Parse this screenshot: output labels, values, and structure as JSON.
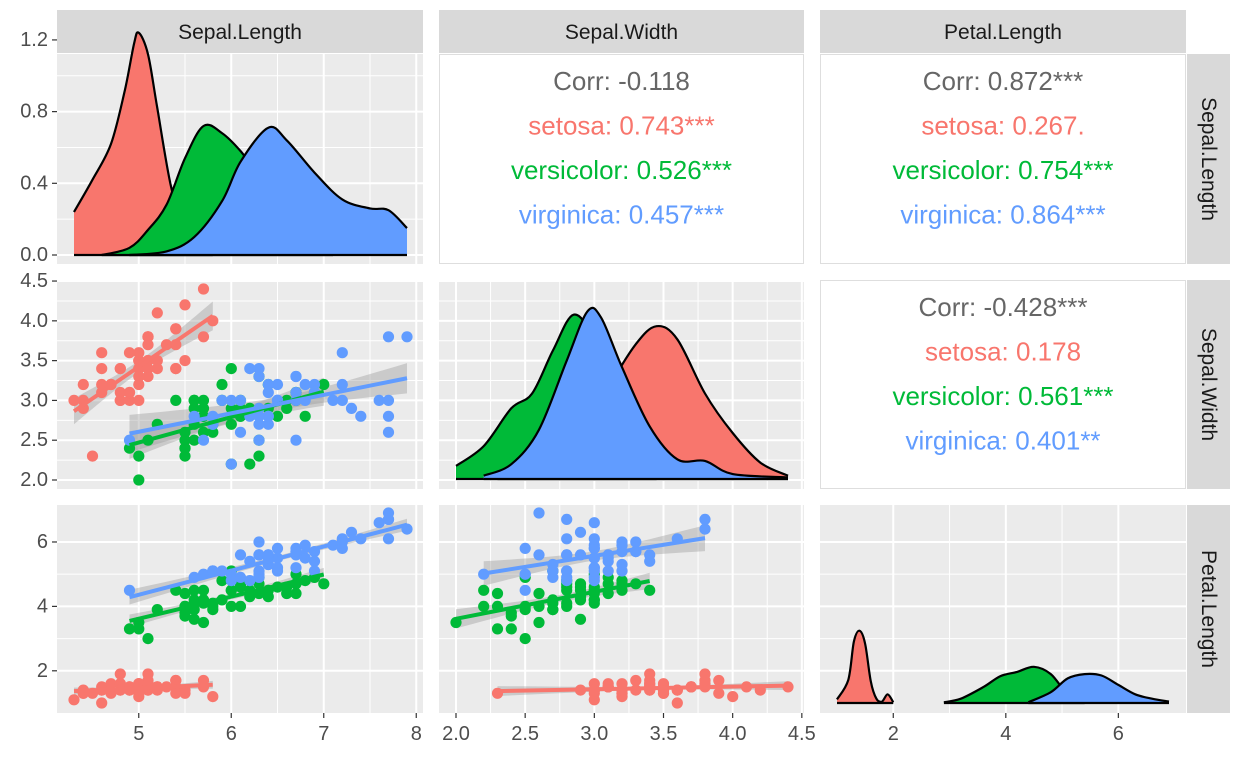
{
  "colors": {
    "setosa": "#F8766D",
    "versicolor": "#00BA38",
    "virginica": "#619CFF",
    "corr_overall": "#666666",
    "panel_bg": "#EBEBEB",
    "strip_bg": "#D9D9D9"
  },
  "chart_data": {
    "type": "scatter",
    "title": "",
    "variables": [
      "Sepal.Length",
      "Sepal.Width",
      "Petal.Length"
    ],
    "groups": [
      "setosa",
      "versicolor",
      "virginica"
    ],
    "axes": {
      "Sepal.Length": {
        "range": [
          4.3,
          7.9
        ],
        "ticks": [
          "5",
          "6",
          "7",
          "8"
        ],
        "tick_values": [
          5,
          6,
          7,
          8
        ]
      },
      "Sepal.Width": {
        "range": [
          2.0,
          4.4
        ],
        "ticks": [
          "2.0",
          "2.5",
          "3.0",
          "3.5",
          "4.0",
          "4.5"
        ],
        "tick_values": [
          2.0,
          2.5,
          3.0,
          3.5,
          4.0,
          4.5
        ]
      },
      "Petal.Length": {
        "range": [
          1.0,
          6.9
        ],
        "ticks_x": [
          "2",
          "4",
          "6"
        ],
        "ticks_y": [
          "2",
          "4",
          "6"
        ],
        "tick_values": [
          2,
          4,
          6
        ]
      }
    },
    "density_axis": {
      "range": [
        0,
        1.3
      ],
      "ticks": [
        "0.0",
        "0.4",
        "0.8",
        "1.2"
      ],
      "tick_values": [
        0.0,
        0.4,
        0.8,
        1.2
      ]
    },
    "densities": {
      "Sepal.Length": {
        "setosa": [
          [
            4.3,
            0.24
          ],
          [
            4.5,
            0.42
          ],
          [
            4.7,
            0.62
          ],
          [
            4.85,
            0.92
          ],
          [
            4.95,
            1.18
          ],
          [
            5.0,
            1.24
          ],
          [
            5.1,
            1.12
          ],
          [
            5.2,
            0.82
          ],
          [
            5.35,
            0.38
          ],
          [
            5.5,
            0.14
          ],
          [
            5.7,
            0.05
          ],
          [
            5.8,
            0.01
          ]
        ],
        "versicolor": [
          [
            4.6,
            0.0
          ],
          [
            4.9,
            0.04
          ],
          [
            5.1,
            0.14
          ],
          [
            5.3,
            0.28
          ],
          [
            5.5,
            0.54
          ],
          [
            5.7,
            0.72
          ],
          [
            5.9,
            0.68
          ],
          [
            6.1,
            0.58
          ],
          [
            6.3,
            0.44
          ],
          [
            6.5,
            0.3
          ],
          [
            6.7,
            0.18
          ],
          [
            6.9,
            0.07
          ],
          [
            7.1,
            0.01
          ]
        ],
        "virginica": [
          [
            4.9,
            0.0
          ],
          [
            5.3,
            0.02
          ],
          [
            5.6,
            0.1
          ],
          [
            5.9,
            0.3
          ],
          [
            6.1,
            0.52
          ],
          [
            6.4,
            0.71
          ],
          [
            6.6,
            0.64
          ],
          [
            6.9,
            0.46
          ],
          [
            7.2,
            0.31
          ],
          [
            7.5,
            0.26
          ],
          [
            7.7,
            0.25
          ],
          [
            7.9,
            0.15
          ]
        ]
      },
      "Sepal.Width": {
        "setosa": [
          [
            2.3,
            0.02
          ],
          [
            2.6,
            0.05
          ],
          [
            2.9,
            0.22
          ],
          [
            3.1,
            0.55
          ],
          [
            3.3,
            0.82
          ],
          [
            3.45,
            0.93
          ],
          [
            3.6,
            0.85
          ],
          [
            3.8,
            0.52
          ],
          [
            4.0,
            0.28
          ],
          [
            4.2,
            0.1
          ],
          [
            4.4,
            0.02
          ]
        ],
        "versicolor": [
          [
            2.0,
            0.08
          ],
          [
            2.2,
            0.2
          ],
          [
            2.4,
            0.43
          ],
          [
            2.55,
            0.52
          ],
          [
            2.7,
            0.78
          ],
          [
            2.85,
            1.0
          ],
          [
            3.0,
            0.85
          ],
          [
            3.15,
            0.55
          ],
          [
            3.3,
            0.25
          ],
          [
            3.45,
            0.05
          ]
        ],
        "virginica": [
          [
            2.2,
            0.02
          ],
          [
            2.4,
            0.09
          ],
          [
            2.6,
            0.3
          ],
          [
            2.8,
            0.72
          ],
          [
            2.95,
            1.02
          ],
          [
            3.05,
            0.98
          ],
          [
            3.2,
            0.68
          ],
          [
            3.4,
            0.32
          ],
          [
            3.6,
            0.12
          ],
          [
            3.8,
            0.11
          ],
          [
            4.0,
            0.03
          ],
          [
            4.4,
            0.01
          ]
        ]
      },
      "Petal.Length": {
        "setosa": [
          [
            1.0,
            0.05
          ],
          [
            1.2,
            0.32
          ],
          [
            1.3,
            0.85
          ],
          [
            1.4,
            1.0
          ],
          [
            1.5,
            0.82
          ],
          [
            1.6,
            0.3
          ],
          [
            1.7,
            0.06
          ],
          [
            1.8,
            0.02
          ],
          [
            1.9,
            0.12
          ],
          [
            2.0,
            0.01
          ]
        ],
        "versicolor": [
          [
            2.9,
            0.01
          ],
          [
            3.2,
            0.06
          ],
          [
            3.6,
            0.22
          ],
          [
            3.9,
            0.37
          ],
          [
            4.2,
            0.43
          ],
          [
            4.5,
            0.5
          ],
          [
            4.8,
            0.4
          ],
          [
            5.1,
            0.12
          ],
          [
            5.4,
            0.0
          ]
        ],
        "virginica": [
          [
            4.4,
            0.01
          ],
          [
            4.8,
            0.15
          ],
          [
            5.1,
            0.34
          ],
          [
            5.4,
            0.4
          ],
          [
            5.7,
            0.38
          ],
          [
            6.0,
            0.25
          ],
          [
            6.3,
            0.12
          ],
          [
            6.6,
            0.06
          ],
          [
            6.9,
            0.02
          ]
        ]
      }
    },
    "density_scale": {
      "Sepal.Width": 1.15,
      "Petal.Length": 2.6
    },
    "points": {
      "setosa": {
        "Sepal.Length": [
          5.1,
          4.9,
          4.7,
          4.6,
          5.0,
          5.4,
          4.6,
          5.0,
          4.4,
          4.9,
          5.4,
          4.8,
          4.8,
          4.3,
          5.8,
          5.7,
          5.4,
          5.1,
          5.7,
          5.1,
          5.4,
          5.1,
          4.6,
          5.1,
          4.8,
          5.0,
          5.0,
          5.2,
          5.2,
          4.7,
          4.8,
          5.4,
          5.2,
          5.5,
          4.9,
          5.0,
          5.5,
          4.9,
          4.4,
          5.1,
          5.0,
          4.5,
          4.4,
          5.0,
          5.1,
          4.8,
          5.1,
          4.6,
          5.3,
          5.0
        ],
        "Sepal.Width": [
          3.5,
          3.0,
          3.2,
          3.1,
          3.6,
          3.9,
          3.4,
          3.4,
          2.9,
          3.1,
          3.7,
          3.4,
          3.0,
          3.0,
          4.0,
          4.4,
          3.9,
          3.5,
          3.8,
          3.8,
          3.4,
          3.7,
          3.6,
          3.3,
          3.4,
          3.0,
          3.4,
          3.5,
          3.4,
          3.2,
          3.1,
          3.4,
          4.1,
          4.2,
          3.1,
          3.2,
          3.5,
          3.6,
          3.0,
          3.4,
          3.5,
          2.3,
          3.2,
          3.5,
          3.8,
          3.0,
          3.8,
          3.2,
          3.7,
          3.3
        ],
        "Petal.Length": [
          1.4,
          1.4,
          1.3,
          1.5,
          1.4,
          1.7,
          1.4,
          1.5,
          1.4,
          1.5,
          1.5,
          1.6,
          1.4,
          1.1,
          1.2,
          1.5,
          1.3,
          1.4,
          1.7,
          1.5,
          1.7,
          1.5,
          1.0,
          1.7,
          1.9,
          1.6,
          1.6,
          1.5,
          1.4,
          1.6,
          1.6,
          1.5,
          1.5,
          1.4,
          1.5,
          1.2,
          1.3,
          1.4,
          1.3,
          1.5,
          1.3,
          1.3,
          1.3,
          1.6,
          1.9,
          1.4,
          1.6,
          1.4,
          1.5,
          1.4
        ]
      },
      "versicolor": {
        "Sepal.Length": [
          7.0,
          6.4,
          6.9,
          5.5,
          6.5,
          5.7,
          6.3,
          4.9,
          6.6,
          5.2,
          5.0,
          5.9,
          6.0,
          6.1,
          5.6,
          6.7,
          5.6,
          5.8,
          6.2,
          5.6,
          5.9,
          6.1,
          6.3,
          6.1,
          6.4,
          6.6,
          6.8,
          6.7,
          6.0,
          5.7,
          5.5,
          5.5,
          5.8,
          6.0,
          5.4,
          6.0,
          6.7,
          6.3,
          5.6,
          5.5,
          5.5,
          6.1,
          5.8,
          5.0,
          5.6,
          5.7,
          5.7,
          6.2,
          5.1,
          5.7
        ],
        "Sepal.Width": [
          3.2,
          3.2,
          3.1,
          2.3,
          2.8,
          2.8,
          3.3,
          2.4,
          2.9,
          2.7,
          2.0,
          3.0,
          2.2,
          2.9,
          2.9,
          3.1,
          3.0,
          2.7,
          2.2,
          2.5,
          3.2,
          2.8,
          2.5,
          2.8,
          2.9,
          3.0,
          2.8,
          3.0,
          2.9,
          2.6,
          2.4,
          2.4,
          2.7,
          2.7,
          3.0,
          3.4,
          3.1,
          2.3,
          3.0,
          2.5,
          2.6,
          3.0,
          2.6,
          2.3,
          2.7,
          3.0,
          2.9,
          2.9,
          2.5,
          2.8
        ],
        "Petal.Length": [
          4.7,
          4.5,
          4.9,
          4.0,
          4.6,
          4.5,
          4.7,
          3.3,
          4.6,
          3.9,
          3.5,
          4.2,
          4.0,
          4.7,
          3.6,
          4.4,
          4.5,
          4.1,
          4.5,
          3.9,
          4.8,
          4.0,
          4.9,
          4.7,
          4.3,
          4.4,
          4.8,
          5.0,
          4.5,
          3.5,
          3.8,
          3.7,
          3.9,
          5.1,
          4.5,
          4.5,
          4.7,
          4.4,
          4.1,
          4.0,
          4.4,
          4.6,
          4.0,
          3.3,
          4.2,
          4.2,
          4.2,
          4.3,
          3.0,
          4.1
        ]
      },
      "virginica": {
        "Sepal.Length": [
          6.3,
          5.8,
          7.1,
          6.3,
          6.5,
          7.6,
          4.9,
          7.3,
          6.7,
          7.2,
          6.5,
          6.4,
          6.8,
          5.7,
          5.8,
          6.4,
          6.5,
          7.7,
          7.7,
          6.0,
          6.9,
          5.6,
          7.7,
          6.3,
          6.7,
          7.2,
          6.2,
          6.1,
          6.4,
          7.2,
          7.4,
          7.9,
          6.4,
          6.3,
          6.1,
          7.7,
          6.3,
          6.4,
          6.0,
          6.9,
          6.7,
          6.9,
          5.8,
          6.8,
          6.7,
          6.7,
          6.3,
          6.5,
          6.2,
          5.9
        ],
        "Sepal.Width": [
          3.3,
          2.7,
          3.0,
          2.9,
          3.0,
          3.0,
          2.5,
          2.9,
          2.5,
          3.6,
          3.2,
          2.7,
          3.0,
          2.5,
          2.8,
          3.2,
          3.0,
          3.8,
          2.6,
          2.2,
          3.2,
          2.8,
          2.8,
          2.7,
          3.3,
          3.2,
          2.8,
          3.0,
          2.8,
          3.0,
          2.8,
          3.8,
          2.8,
          2.8,
          2.6,
          3.0,
          3.4,
          3.1,
          3.0,
          3.1,
          3.1,
          3.1,
          2.7,
          3.2,
          3.3,
          3.0,
          2.5,
          3.0,
          3.4,
          3.0
        ],
        "Petal.Length": [
          6.0,
          5.1,
          5.9,
          5.6,
          5.8,
          6.6,
          4.5,
          6.3,
          5.8,
          6.1,
          5.1,
          5.3,
          5.5,
          5.0,
          5.1,
          5.3,
          5.5,
          6.7,
          6.9,
          5.0,
          5.7,
          4.9,
          6.7,
          4.9,
          5.7,
          6.0,
          4.8,
          4.9,
          5.6,
          5.8,
          6.1,
          6.4,
          5.6,
          5.1,
          5.6,
          6.1,
          5.6,
          5.5,
          4.8,
          5.4,
          5.6,
          5.1,
          5.1,
          5.9,
          5.7,
          5.2,
          5.0,
          5.2,
          5.4,
          5.1
        ]
      }
    },
    "correlations": [
      {
        "row": "Sepal.Length",
        "col": "Sepal.Width",
        "overall": "Corr: -0.118",
        "groups": {
          "setosa": "setosa: 0.743***",
          "versicolor": "versicolor: 0.526***",
          "virginica": "virginica: 0.457***"
        }
      },
      {
        "row": "Sepal.Length",
        "col": "Petal.Length",
        "overall": "Corr: 0.872***",
        "groups": {
          "setosa": "setosa: 0.267.",
          "versicolor": "versicolor: 0.754***",
          "virginica": "virginica: 0.864***"
        }
      },
      {
        "row": "Sepal.Width",
        "col": "Petal.Length",
        "overall": "Corr: -0.428***",
        "groups": {
          "setosa": "setosa: 0.178",
          "versicolor": "versicolor: 0.561***",
          "virginica": "virginica: 0.401**"
        }
      }
    ],
    "legend": "none",
    "grid": true
  }
}
